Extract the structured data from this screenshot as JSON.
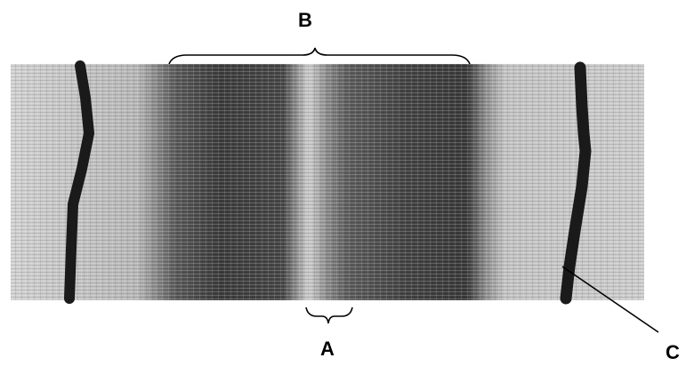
{
  "figure": {
    "labels": {
      "a": "A",
      "b": "B",
      "c": "C"
    },
    "colors": {
      "band_dark": "#3a3a3a",
      "background_light": "#d6d6d6",
      "line_dark": "#1a1a1a",
      "annotation": "#000000"
    }
  }
}
